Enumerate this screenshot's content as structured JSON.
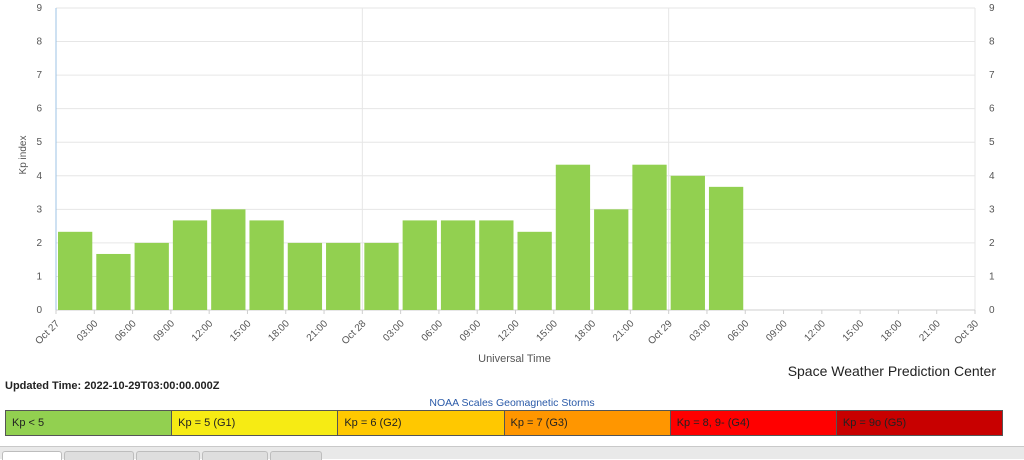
{
  "chart_data": {
    "type": "bar",
    "ylabel": "Kp index",
    "xlabel": "Universal Time",
    "ylim": [
      0,
      9
    ],
    "yticks": [
      "0",
      "1",
      "2",
      "3",
      "4",
      "5",
      "6",
      "7",
      "8",
      "9"
    ],
    "grid": true,
    "bar_color": "#92d050",
    "xtick_labels": [
      "Oct 27",
      "03:00",
      "06:00",
      "09:00",
      "12:00",
      "15:00",
      "18:00",
      "21:00",
      "Oct 28",
      "03:00",
      "06:00",
      "09:00",
      "12:00",
      "15:00",
      "18:00",
      "21:00",
      "Oct 29",
      "03:00",
      "06:00",
      "09:00",
      "12:00",
      "15:00",
      "18:00",
      "21:00",
      "Oct 30"
    ],
    "values": [
      2.33,
      1.67,
      2.0,
      2.67,
      3.0,
      2.67,
      2.0,
      2.0,
      2.0,
      2.67,
      2.67,
      2.67,
      2.33,
      4.33,
      3.0,
      4.33,
      4.0,
      3.67
    ]
  },
  "updated": {
    "label": "Updated Time:",
    "value": "2022-10-29T03:00:00.000Z"
  },
  "credit": "Space Weather Prediction Center",
  "scales": {
    "title": "NOAA Scales Geomagnetic Storms",
    "items": [
      {
        "label": "Kp < 5",
        "color": "#92d050"
      },
      {
        "label": "Kp = 5 (G1)",
        "color": "#f6eb14"
      },
      {
        "label": "Kp = 6 (G2)",
        "color": "#ffc800"
      },
      {
        "label": "Kp = 7 (G3)",
        "color": "#ff9600"
      },
      {
        "label": "Kp = 8, 9- (G4)",
        "color": "#ff0000"
      },
      {
        "label": "Kp = 9o (G5)",
        "color": "#c80000"
      }
    ]
  }
}
